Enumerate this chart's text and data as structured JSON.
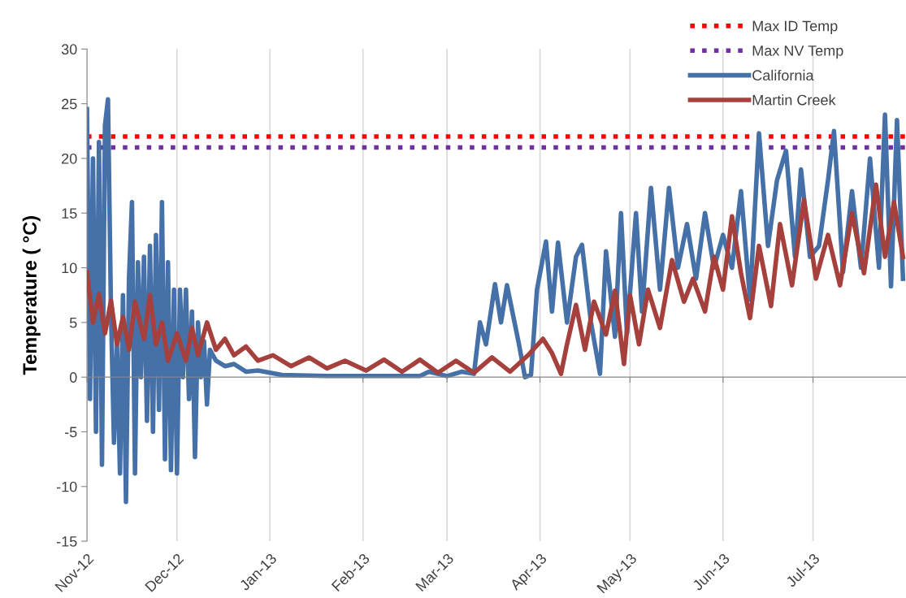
{
  "chart_data": {
    "type": "line",
    "ylabel": "Temperature ( °C)",
    "xlim": [
      "2012-11-01",
      "2013-08-01"
    ],
    "xticks": [
      {
        "value": "2012-11-01",
        "label": "Nov-12"
      },
      {
        "value": "2012-12-01",
        "label": "Dec-12"
      },
      {
        "value": "2013-01-01",
        "label": "Jan-13"
      },
      {
        "value": "2013-02-01",
        "label": "Feb-13"
      },
      {
        "value": "2013-03-01",
        "label": "Mar-13"
      },
      {
        "value": "2013-04-01",
        "label": "Apr-13"
      },
      {
        "value": "2013-05-01",
        "label": "May-13"
      },
      {
        "value": "2013-06-01",
        "label": "Jun-13"
      },
      {
        "value": "2013-07-01",
        "label": "Jul-13"
      }
    ],
    "ylim": [
      -15,
      30
    ],
    "yticks": [
      -15,
      -10,
      -5,
      0,
      5,
      10,
      15,
      20,
      25,
      30
    ],
    "grid": "x",
    "legend": "top right",
    "line_style": "solid",
    "marker": "none",
    "ref_lines": [
      {
        "axis": "y",
        "value": 22,
        "label": "Max ID Temp",
        "color": "#ff0000",
        "line_style": "dotted"
      },
      {
        "axis": "y",
        "value": 21,
        "label": "Max NV Temp",
        "color": "#7030a0",
        "line_style": "dotted"
      }
    ],
    "series": [
      {
        "name": "California",
        "color": "#4571a8",
        "x": [
          "2012-11-01",
          "2012-11-02",
          "2012-11-03",
          "2012-11-04",
          "2012-11-05",
          "2012-11-06",
          "2012-11-07",
          "2012-11-08",
          "2012-11-09",
          "2012-11-10",
          "2012-11-11",
          "2012-11-12",
          "2012-11-13",
          "2012-11-14",
          "2012-11-15",
          "2012-11-16",
          "2012-11-17",
          "2012-11-18",
          "2012-11-19",
          "2012-11-20",
          "2012-11-21",
          "2012-11-22",
          "2012-11-23",
          "2012-11-24",
          "2012-11-25",
          "2012-11-26",
          "2012-11-27",
          "2012-11-28",
          "2012-11-29",
          "2012-11-30",
          "2012-12-01",
          "2012-12-02",
          "2012-12-03",
          "2012-12-04",
          "2012-12-05",
          "2012-12-06",
          "2012-12-07",
          "2012-12-08",
          "2012-12-09",
          "2012-12-10",
          "2012-12-11",
          "2012-12-12",
          "2012-12-14",
          "2012-12-17",
          "2012-12-20",
          "2012-12-24",
          "2012-12-28",
          "2013-01-05",
          "2013-01-20",
          "2013-02-05",
          "2013-02-20",
          "2013-02-23",
          "2013-03-01",
          "2013-03-06",
          "2013-03-10",
          "2013-03-12",
          "2013-03-14",
          "2013-03-17",
          "2013-03-19",
          "2013-03-21",
          "2013-03-25",
          "2013-03-27",
          "2013-03-29",
          "2013-03-31",
          "2013-04-03",
          "2013-04-05",
          "2013-04-07",
          "2013-04-10",
          "2013-04-13",
          "2013-04-15",
          "2013-04-18",
          "2013-04-21",
          "2013-04-23",
          "2013-04-26",
          "2013-04-28",
          "2013-04-30",
          "2013-05-03",
          "2013-05-05",
          "2013-05-08",
          "2013-05-11",
          "2013-05-14",
          "2013-05-17",
          "2013-05-20",
          "2013-05-23",
          "2013-05-26",
          "2013-05-29",
          "2013-06-01",
          "2013-06-04",
          "2013-06-07",
          "2013-06-10",
          "2013-06-13",
          "2013-06-16",
          "2013-06-19",
          "2013-06-22",
          "2013-06-25",
          "2013-06-27",
          "2013-06-30",
          "2013-07-03",
          "2013-07-06",
          "2013-07-08",
          "2013-07-11",
          "2013-07-14",
          "2013-07-17",
          "2013-07-20",
          "2013-07-23",
          "2013-07-25",
          "2013-07-27",
          "2013-07-29",
          "2013-07-31"
        ],
        "values": [
          24.5,
          -2,
          20,
          -5,
          21.5,
          -8,
          23,
          25.4,
          6,
          -6,
          3,
          -8.8,
          7.5,
          -11.4,
          9,
          16,
          -8.8,
          10.5,
          0,
          11,
          -4,
          12,
          -5,
          13,
          -3,
          16,
          -7.5,
          10.5,
          -8.5,
          8,
          -8.8,
          8,
          0,
          8,
          -2,
          6,
          -7.3,
          5,
          0,
          3.3,
          -2.5,
          2.5,
          1.5,
          1,
          1.2,
          0.5,
          0.6,
          0.2,
          0.1,
          0.1,
          0.1,
          0.5,
          0.1,
          0.5,
          0.3,
          5,
          3,
          8.5,
          5,
          8.4,
          3,
          0,
          0.2,
          8,
          12.4,
          6,
          12.3,
          5,
          11,
          12.1,
          5,
          0.3,
          11.5,
          3.7,
          15,
          4,
          15,
          6,
          17.3,
          8,
          17.3,
          10,
          14,
          9,
          15,
          10,
          13,
          10,
          17,
          7.1,
          22.3,
          12,
          18,
          20.7,
          11,
          19,
          11,
          12,
          18,
          22.5,
          9.6,
          17,
          10,
          20,
          10,
          24,
          8.3,
          23.5,
          9
        ]
      },
      {
        "name": "Martin Creek",
        "color": "#a5403c",
        "x": [
          "2012-11-01",
          "2012-11-03",
          "2012-11-05",
          "2012-11-07",
          "2012-11-09",
          "2012-11-11",
          "2012-11-13",
          "2012-11-15",
          "2012-11-17",
          "2012-11-20",
          "2012-11-22",
          "2012-11-24",
          "2012-11-26",
          "2012-11-28",
          "2012-12-01",
          "2012-12-04",
          "2012-12-06",
          "2012-12-08",
          "2012-12-11",
          "2012-12-14",
          "2012-12-17",
          "2012-12-20",
          "2012-12-24",
          "2012-12-28",
          "2013-01-02",
          "2013-01-08",
          "2013-01-14",
          "2013-01-20",
          "2013-01-26",
          "2013-02-02",
          "2013-02-08",
          "2013-02-14",
          "2013-02-20",
          "2013-02-26",
          "2013-03-04",
          "2013-03-10",
          "2013-03-16",
          "2013-03-22",
          "2013-03-28",
          "2013-04-02",
          "2013-04-05",
          "2013-04-08",
          "2013-04-10",
          "2013-04-13",
          "2013-04-16",
          "2013-04-19",
          "2013-04-23",
          "2013-04-26",
          "2013-04-29",
          "2013-05-01",
          "2013-05-04",
          "2013-05-07",
          "2013-05-11",
          "2013-05-15",
          "2013-05-19",
          "2013-05-22",
          "2013-05-26",
          "2013-05-29",
          "2013-06-01",
          "2013-06-04",
          "2013-06-07",
          "2013-06-10",
          "2013-06-13",
          "2013-06-17",
          "2013-06-20",
          "2013-06-24",
          "2013-06-28",
          "2013-07-02",
          "2013-07-06",
          "2013-07-10",
          "2013-07-14",
          "2013-07-18",
          "2013-07-22",
          "2013-07-25",
          "2013-07-28",
          "2013-07-31"
        ],
        "values": [
          9.6,
          5,
          7.6,
          4,
          7,
          3,
          5.5,
          2.5,
          6.9,
          3.5,
          7.5,
          3,
          5,
          1.5,
          4,
          1.5,
          4.5,
          2,
          5,
          2.5,
          3.5,
          2,
          2.8,
          1.5,
          2,
          1,
          1.8,
          0.8,
          1.5,
          0.6,
          1.6,
          0.5,
          1.6,
          0.4,
          1.5,
          0.4,
          1.8,
          0.5,
          2,
          3.5,
          2.2,
          0.3,
          3,
          6.6,
          2.5,
          6.9,
          3.9,
          7.9,
          1.2,
          7.5,
          3,
          8,
          4.5,
          10.7,
          6.9,
          9,
          6,
          11,
          8,
          14.7,
          9.5,
          5.4,
          12,
          6.5,
          14,
          8.4,
          16.2,
          9,
          13,
          8.4,
          15,
          9.5,
          17.6,
          11,
          16,
          11
        ]
      }
    ]
  }
}
